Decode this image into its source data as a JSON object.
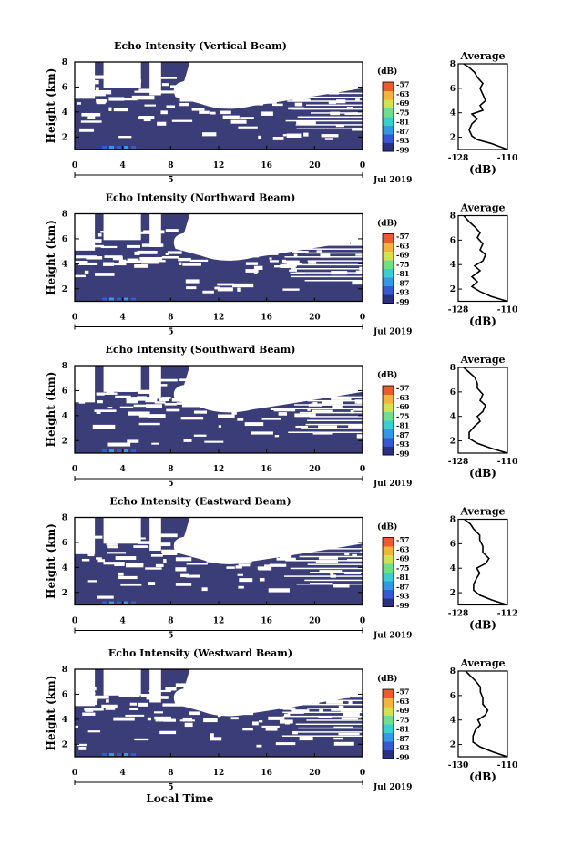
{
  "chart_data": [
    {
      "type": "heatmap",
      "title": "Echo Intensity (Vertical Beam)",
      "ylabel": "Height (km)",
      "x_ticks": [
        "0",
        "4",
        "8",
        "12",
        "16",
        "20",
        "0"
      ],
      "x_ticks_lower": [
        "5"
      ],
      "date_label": "Jul 2019",
      "y_ticks": [
        "2",
        "4",
        "6",
        "8"
      ],
      "ylim": [
        1,
        8
      ],
      "colorbar": {
        "unit": "(dB)",
        "labels": [
          "-57",
          "-63",
          "-69",
          "-75",
          "-81",
          "-87",
          "-93",
          "-99"
        ]
      },
      "profile": {
        "title": "Average",
        "xlabel": "(dB)",
        "x_ticks": [
          "-128",
          "-110"
        ],
        "y_ticks": [
          "2",
          "4",
          "6",
          "8"
        ],
        "xlim": [
          -128,
          -110
        ],
        "ylim": [
          1,
          8
        ],
        "points": [
          [
            -110,
            1.0
          ],
          [
            -116,
            1.5
          ],
          [
            -121,
            1.8
          ],
          [
            -123,
            2.1
          ],
          [
            -124,
            2.6
          ],
          [
            -123,
            3.1
          ],
          [
            -121,
            3.5
          ],
          [
            -123,
            3.9
          ],
          [
            -119,
            4.2
          ],
          [
            -120,
            4.6
          ],
          [
            -118,
            5.0
          ],
          [
            -119,
            5.5
          ],
          [
            -120,
            6.0
          ],
          [
            -119,
            6.4
          ],
          [
            -121,
            6.9
          ],
          [
            -122,
            7.3
          ],
          [
            -124,
            7.7
          ],
          [
            -126,
            8.0
          ]
        ]
      }
    },
    {
      "type": "heatmap",
      "title": "Echo Intensity (Northward Beam)",
      "ylabel": "Height (km)",
      "x_ticks": [
        "0",
        "4",
        "8",
        "12",
        "16",
        "20",
        "0"
      ],
      "x_ticks_lower": [
        "5"
      ],
      "date_label": "Jul 2019",
      "y_ticks": [
        "2",
        "4",
        "6",
        "8"
      ],
      "ylim": [
        1,
        8
      ],
      "colorbar": {
        "unit": "(dB)",
        "labels": [
          "-57",
          "-63",
          "-69",
          "-75",
          "-81",
          "-87",
          "-93",
          "-99"
        ]
      },
      "profile": {
        "title": "Average",
        "xlabel": "(dB)",
        "x_ticks": [
          "-128",
          "-110"
        ],
        "y_ticks": [
          "2",
          "4",
          "6",
          "8"
        ],
        "xlim": [
          -128,
          -110
        ],
        "ylim": [
          1,
          8
        ],
        "points": [
          [
            -110,
            1.0
          ],
          [
            -116,
            1.4
          ],
          [
            -120,
            1.8
          ],
          [
            -123,
            2.2
          ],
          [
            -121,
            2.6
          ],
          [
            -123,
            3.0
          ],
          [
            -120,
            3.5
          ],
          [
            -122,
            3.9
          ],
          [
            -119,
            4.3
          ],
          [
            -118,
            4.8
          ],
          [
            -120,
            5.2
          ],
          [
            -119,
            5.7
          ],
          [
            -121,
            6.2
          ],
          [
            -120,
            6.6
          ],
          [
            -122,
            7.1
          ],
          [
            -124,
            7.5
          ],
          [
            -126,
            8.0
          ]
        ]
      }
    },
    {
      "type": "heatmap",
      "title": "Echo Intensity (Southward Beam)",
      "ylabel": "Height (km)",
      "x_ticks": [
        "0",
        "4",
        "8",
        "12",
        "16",
        "20",
        "0"
      ],
      "x_ticks_lower": [
        "5"
      ],
      "date_label": "Jul 2019",
      "y_ticks": [
        "2",
        "4",
        "6",
        "8"
      ],
      "ylim": [
        1,
        8
      ],
      "colorbar": {
        "unit": "(dB)",
        "labels": [
          "-57",
          "-63",
          "-69",
          "-75",
          "-81",
          "-87",
          "-93",
          "-99"
        ]
      },
      "profile": {
        "title": "Average",
        "xlabel": "(dB)",
        "x_ticks": [
          "-128",
          "-110"
        ],
        "y_ticks": [
          "2",
          "4",
          "6",
          "8"
        ],
        "xlim": [
          -128,
          -110
        ],
        "ylim": [
          1,
          8
        ],
        "points": [
          [
            -110,
            1.0
          ],
          [
            -116,
            1.4
          ],
          [
            -121,
            1.8
          ],
          [
            -124,
            2.2
          ],
          [
            -124,
            2.7
          ],
          [
            -122,
            3.2
          ],
          [
            -120,
            3.6
          ],
          [
            -121,
            4.0
          ],
          [
            -119,
            4.4
          ],
          [
            -118,
            4.9
          ],
          [
            -120,
            5.3
          ],
          [
            -119,
            5.8
          ],
          [
            -121,
            6.3
          ],
          [
            -121,
            6.7
          ],
          [
            -122,
            7.2
          ],
          [
            -124,
            7.6
          ],
          [
            -126,
            8.0
          ]
        ]
      }
    },
    {
      "type": "heatmap",
      "title": "Echo Intensity (Eastward Beam)",
      "ylabel": "Height (km)",
      "x_ticks": [
        "0",
        "4",
        "8",
        "12",
        "16",
        "20",
        "0"
      ],
      "x_ticks_lower": [
        "5"
      ],
      "date_label": "Jul 2019",
      "y_ticks": [
        "2",
        "4",
        "6",
        "8"
      ],
      "ylim": [
        1,
        8
      ],
      "colorbar": {
        "unit": "(dB)",
        "labels": [
          "-57",
          "-63",
          "-69",
          "-75",
          "-81",
          "-87",
          "-93",
          "-99"
        ]
      },
      "profile": {
        "title": "Average",
        "xlabel": "(dB)",
        "x_ticks": [
          "-128",
          "-112"
        ],
        "y_ticks": [
          "2",
          "4",
          "6",
          "8"
        ],
        "xlim": [
          -128,
          -112
        ],
        "ylim": [
          1,
          8
        ],
        "points": [
          [
            -112,
            1.0
          ],
          [
            -117,
            1.4
          ],
          [
            -121,
            1.8
          ],
          [
            -123,
            2.2
          ],
          [
            -123,
            2.7
          ],
          [
            -122,
            3.2
          ],
          [
            -121,
            3.6
          ],
          [
            -122,
            4.0
          ],
          [
            -119,
            4.4
          ],
          [
            -118,
            4.8
          ],
          [
            -120,
            5.3
          ],
          [
            -120,
            5.8
          ],
          [
            -121,
            6.3
          ],
          [
            -121,
            6.7
          ],
          [
            -123,
            7.2
          ],
          [
            -124,
            7.6
          ],
          [
            -126,
            8.0
          ]
        ]
      }
    },
    {
      "type": "heatmap",
      "title": "Echo Intensity (Westward Beam)",
      "ylabel": "Height (km)",
      "x_ticks": [
        "0",
        "4",
        "8",
        "12",
        "16",
        "20",
        "0"
      ],
      "x_ticks_lower": [
        "5"
      ],
      "date_label": "Jul 2019",
      "xlabel": "Local Time",
      "y_ticks": [
        "2",
        "4",
        "6",
        "8"
      ],
      "ylim": [
        1,
        8
      ],
      "colorbar": {
        "unit": "(dB)",
        "labels": [
          "-57",
          "-63",
          "-69",
          "-75",
          "-81",
          "-87",
          "-93",
          "-99"
        ]
      },
      "profile": {
        "title": "Average",
        "xlabel": "(dB)",
        "x_ticks": [
          "-130",
          "-110"
        ],
        "y_ticks": [
          "2",
          "4",
          "6",
          "8"
        ],
        "xlim": [
          -130,
          -110
        ],
        "ylim": [
          1,
          8
        ],
        "points": [
          [
            -110,
            1.0
          ],
          [
            -116,
            1.4
          ],
          [
            -121,
            1.8
          ],
          [
            -124,
            2.2
          ],
          [
            -124,
            2.7
          ],
          [
            -123,
            3.2
          ],
          [
            -121,
            3.6
          ],
          [
            -122,
            4.0
          ],
          [
            -119,
            4.4
          ],
          [
            -118,
            4.8
          ],
          [
            -120,
            5.3
          ],
          [
            -120,
            5.8
          ],
          [
            -121,
            6.3
          ],
          [
            -121,
            6.7
          ],
          [
            -123,
            7.2
          ],
          [
            -125,
            7.6
          ],
          [
            -127,
            8.0
          ]
        ]
      }
    }
  ],
  "colors": {
    "echo_fill": "#3b3d78",
    "background": "#ffffff",
    "colorbar": [
      "#2a2f86",
      "#3559d6",
      "#2f9be8",
      "#36d0d0",
      "#6fe08a",
      "#d3e24a",
      "#f5b33a",
      "#f05a2a"
    ]
  }
}
